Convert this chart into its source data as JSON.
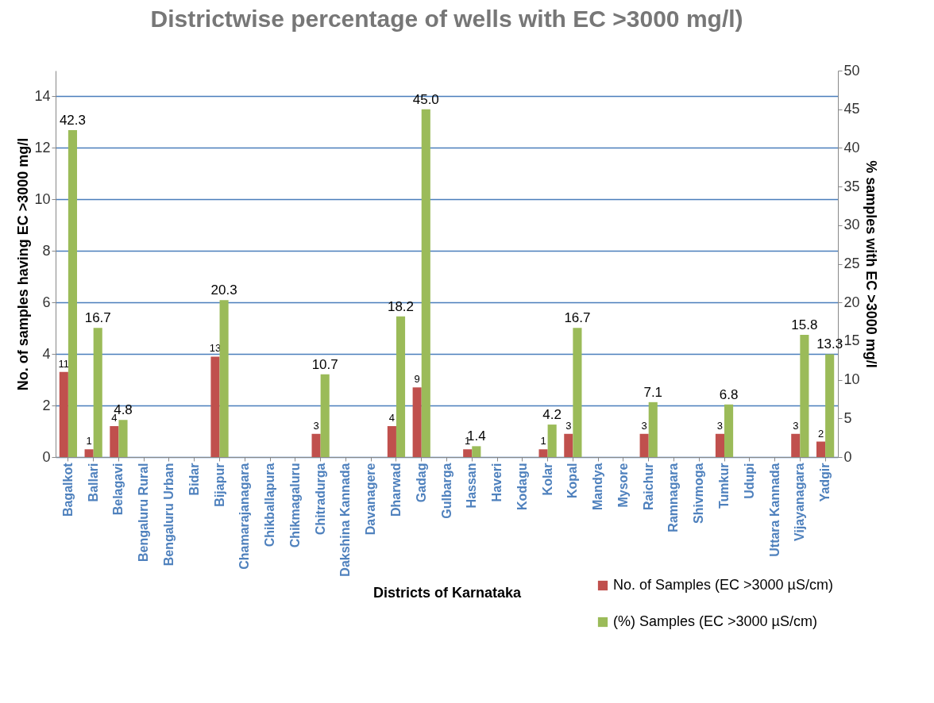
{
  "chart_data": {
    "type": "bar",
    "title": "Districtwise percentage of wells with EC >3000 mg/l)",
    "xlabel": "Districts of Karnataka",
    "ylabel": "No. of samples having  EC >3000 mg/l",
    "y2label": "% samples with EC >3000 mg/l",
    "categories": [
      "Bagalkot",
      "Ballari",
      "Belagavi",
      "Bengaluru Rural",
      "Bengaluru Urban",
      "Bidar",
      "Bijapur",
      "Chamarajanagara",
      "Chikballapura",
      "Chikmagaluru",
      "Chitradurga",
      "Dakshina Kannada",
      "Davanagere",
      "Dharwad",
      "Gadag",
      "Gulbarga",
      "Hassan",
      "Haveri",
      "Kodagu",
      "Kolar",
      "Kopal",
      "Mandya",
      "Mysore",
      "Raichur",
      "Ramnagara",
      "Shivmoga",
      "Tumkur",
      "Udupi",
      "Uttara Kannada",
      "Vijayanagara",
      "Yadgir"
    ],
    "series": [
      {
        "name": "No. of Samples (EC >3000 µS/cm)",
        "color": "#c0504d",
        "axis": "y2",
        "values": [
          11,
          1,
          4,
          0,
          0,
          0,
          13,
          0,
          0,
          0,
          3,
          0,
          0,
          4,
          9,
          0,
          1,
          0,
          0,
          1,
          3,
          0,
          0,
          3,
          0,
          0,
          3,
          0,
          0,
          3,
          2
        ],
        "value_labels": [
          "11",
          "1",
          "4",
          null,
          null,
          null,
          "13",
          null,
          null,
          null,
          "3",
          null,
          null,
          "4",
          "9",
          null,
          "1",
          null,
          null,
          "1",
          "3",
          null,
          null,
          "3",
          null,
          null,
          "3",
          null,
          null,
          "3",
          "2"
        ]
      },
      {
        "name": "(%) Samples (EC >3000 µS/cm)",
        "color": "#9bbb59",
        "axis": "y2",
        "values": [
          42.3,
          16.7,
          4.8,
          0,
          0,
          0,
          20.3,
          0,
          0,
          0,
          10.7,
          0,
          0,
          18.2,
          45.0,
          0,
          1.4,
          0,
          0,
          4.2,
          16.7,
          0,
          0,
          7.1,
          0,
          0,
          6.8,
          0,
          0,
          15.8,
          13.3
        ],
        "value_labels": [
          "42.3",
          "16.7",
          "4.8",
          null,
          null,
          null,
          "20.3",
          null,
          null,
          null,
          "10.7",
          null,
          null,
          "18.2",
          "45.0",
          null,
          "1.4",
          null,
          null,
          "4.2",
          "16.7",
          null,
          null,
          "7.1",
          null,
          null,
          "6.8",
          null,
          null,
          "15.8",
          "13.3"
        ]
      }
    ],
    "ylim": [
      0,
      15
    ],
    "yticks": [
      0,
      2,
      4,
      6,
      8,
      10,
      12,
      14
    ],
    "y2lim": [
      0,
      50
    ],
    "y2ticks": [
      0,
      5,
      10,
      15,
      20,
      25,
      30,
      35,
      40,
      45,
      50
    ],
    "grid": "y",
    "legend": "bottom right"
  }
}
